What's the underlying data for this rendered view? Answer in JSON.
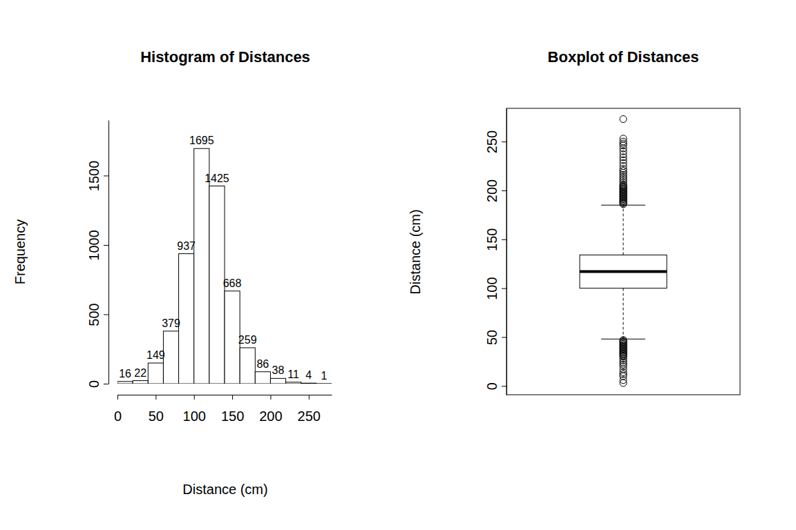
{
  "chart_data": [
    {
      "type": "histogram",
      "title": "Histogram of Distances",
      "x_label": "Distance (cm)",
      "y_label": "Frequency",
      "bins": [
        0,
        20,
        40,
        60,
        80,
        100,
        120,
        140,
        160,
        180,
        200,
        220,
        240,
        260,
        280
      ],
      "values": [
        16,
        22,
        149,
        379,
        937,
        1695,
        1425,
        668,
        259,
        86,
        38,
        11,
        4,
        1
      ],
      "color": "#ffffff",
      "data_labels": true,
      "xlim": [
        0,
        280
      ],
      "xticks": [
        0,
        50,
        100,
        150,
        200,
        250
      ],
      "ylim": [
        0,
        1900
      ],
      "yticks": [
        0,
        500,
        1000,
        1500
      ]
    },
    {
      "type": "box",
      "title": "Boxplot of Distances",
      "y_label": "Distance (cm)",
      "color": "#ffffff",
      "boxes": [
        {
          "min": 48,
          "q1": 100,
          "median": 117,
          "q3": 134,
          "max": 185,
          "outliers": [
            186,
            187,
            188,
            189,
            190,
            191,
            192,
            193,
            194,
            195,
            196,
            197,
            198,
            199,
            200,
            201,
            202,
            203,
            204,
            205,
            206,
            208,
            210,
            212,
            214,
            216,
            218,
            220,
            222,
            225,
            228,
            231,
            234,
            237,
            240,
            243,
            246,
            248,
            250,
            253,
            273,
            47,
            46,
            45,
            44,
            43,
            42,
            41,
            40,
            39,
            38,
            37,
            36,
            35,
            34,
            33,
            32,
            31,
            30,
            28,
            26,
            24,
            22,
            20,
            17,
            14,
            12,
            10,
            6,
            3
          ]
        }
      ],
      "ylim": [
        -9,
        284
      ],
      "yticks": [
        0,
        50,
        100,
        150,
        200,
        250
      ]
    }
  ]
}
